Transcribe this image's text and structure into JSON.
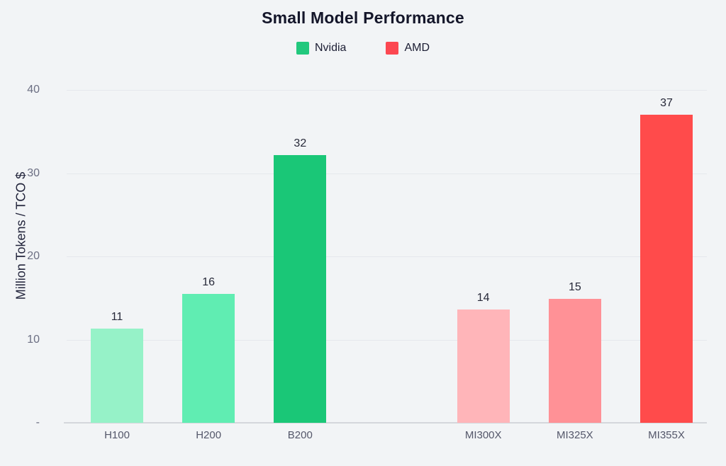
{
  "page": {
    "background_color": "#f2f4f6"
  },
  "chart_data": {
    "type": "bar",
    "title": "Small Model Performance",
    "xlabel": "",
    "ylabel": "Million Tokens / TCO $",
    "ylim": [
      0,
      40
    ],
    "yticks": [
      10,
      20,
      30,
      40
    ],
    "zero_tick_label": "-",
    "grid": true,
    "legend_position": "top-center",
    "legend": [
      {
        "label": "Nvidia",
        "color": "#22c87d"
      },
      {
        "label": "AMD",
        "color": "#fc4751"
      }
    ],
    "categories": [
      "H100",
      "H200",
      "B200",
      "MI300X",
      "MI325X",
      "MI355X"
    ],
    "bars": [
      {
        "category": "H100",
        "series": "Nvidia",
        "label": "11",
        "value": 11.3,
        "color": "#96f2c8"
      },
      {
        "category": "H200",
        "series": "Nvidia",
        "label": "16",
        "value": 15.5,
        "color": "#60edb2"
      },
      {
        "category": "B200",
        "series": "Nvidia",
        "label": "32",
        "value": 32.2,
        "color": "#1ac777"
      },
      {
        "category": "MI300X",
        "series": "AMD",
        "label": "14",
        "value": 13.6,
        "color": "#ffb5b9"
      },
      {
        "category": "MI325X",
        "series": "AMD",
        "label": "15",
        "value": 14.9,
        "color": "#ff9196"
      },
      {
        "category": "MI355X",
        "series": "AMD",
        "label": "37",
        "value": 37.0,
        "color": "#ff4b4b"
      }
    ]
  }
}
